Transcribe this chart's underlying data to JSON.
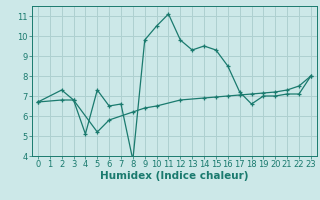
{
  "xlabel": "Humidex (Indice chaleur)",
  "ylabel": "",
  "background_color": "#cce8e8",
  "grid_color": "#aed0d0",
  "line_color": "#1a7a6e",
  "xlim": [
    -0.5,
    23.5
  ],
  "ylim": [
    4,
    11.5
  ],
  "xticks": [
    0,
    1,
    2,
    3,
    4,
    5,
    6,
    7,
    8,
    9,
    10,
    11,
    12,
    13,
    14,
    15,
    16,
    17,
    18,
    19,
    20,
    21,
    22,
    23
  ],
  "yticks": [
    4,
    5,
    6,
    7,
    8,
    9,
    10,
    11
  ],
  "line1_x": [
    0,
    2,
    3,
    4,
    5,
    6,
    7,
    8,
    9,
    10,
    11,
    12,
    13,
    14,
    15,
    16,
    17,
    18,
    19,
    20,
    21,
    22,
    23
  ],
  "line1_y": [
    6.7,
    7.3,
    6.8,
    5.1,
    7.3,
    6.5,
    6.6,
    3.8,
    9.8,
    10.5,
    11.1,
    9.8,
    9.3,
    9.5,
    9.3,
    8.5,
    7.2,
    6.6,
    7.0,
    7.0,
    7.1,
    7.1,
    8.0
  ],
  "line2_x": [
    0,
    2,
    3,
    5,
    6,
    8,
    9,
    10,
    12,
    14,
    15,
    16,
    17,
    18,
    19,
    20,
    21,
    22,
    23
  ],
  "line2_y": [
    6.7,
    6.8,
    6.8,
    5.2,
    5.8,
    6.2,
    6.4,
    6.5,
    6.8,
    6.9,
    6.95,
    7.0,
    7.05,
    7.1,
    7.15,
    7.2,
    7.3,
    7.5,
    8.0
  ],
  "tick_fontsize": 6,
  "xlabel_fontsize": 7.5
}
